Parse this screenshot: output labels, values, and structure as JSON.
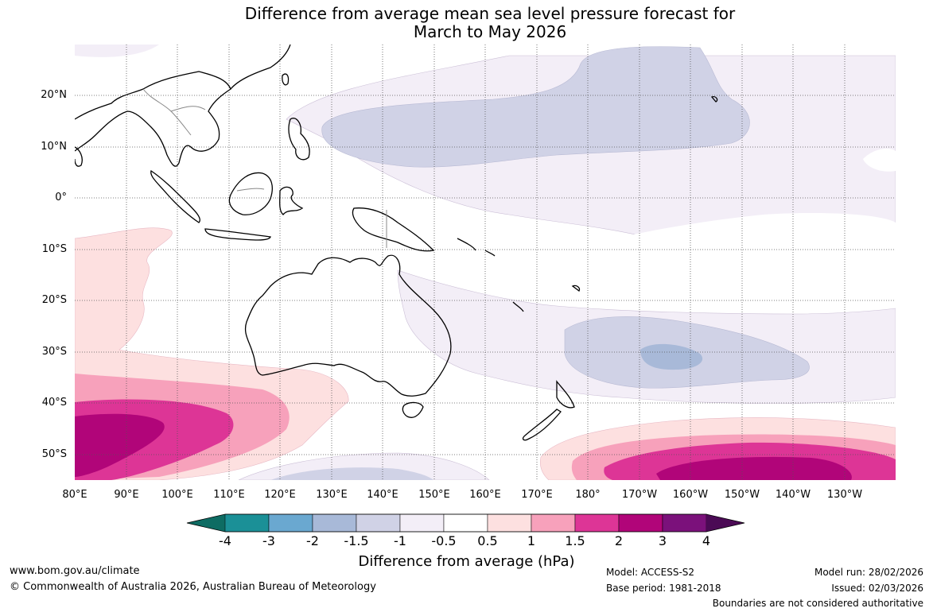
{
  "title": {
    "line1": "Difference from average mean sea level pressure forecast for",
    "line2": "March to May 2026"
  },
  "map": {
    "lat_labels": [
      "20°N",
      "10°N",
      "0°",
      "10°S",
      "20°S",
      "30°S",
      "40°S",
      "50°S"
    ],
    "lon_labels": [
      "80°E",
      "90°E",
      "100°E",
      "110°E",
      "120°E",
      "130°E",
      "140°E",
      "150°E",
      "160°E",
      "170°E",
      "180°",
      "170°W",
      "160°W",
      "150°W",
      "140°W",
      "130°W"
    ],
    "anomaly_regions": [
      {
        "region": "North Pacific low anomaly",
        "level": "-1.5 to -1"
      },
      {
        "region": "Subtropical South Pacific low anomaly",
        "level": "-2 to -1.5"
      },
      {
        "region": "Southern Indian Ocean high anomaly",
        "level": "2 to 3"
      },
      {
        "region": "Southern Ocean south of New Zealand high anomaly",
        "level": "2 to 3"
      }
    ]
  },
  "colorbar": {
    "ticks": [
      "-4",
      "-3",
      "-2",
      "-1.5",
      "-1",
      "-0.5",
      "0.5",
      "1",
      "1.5",
      "2",
      "3",
      "4"
    ],
    "colors": [
      "#0e6c63",
      "#1b9097",
      "#6aa8d0",
      "#a8b9d8",
      "#d0d2e6",
      "#f3eef7",
      "#ffffff",
      "#fde0e0",
      "#f7a1bb",
      "#dd3596",
      "#b10579",
      "#7b117b",
      "#4b0a55"
    ],
    "label": "Difference from average (hPa)"
  },
  "footer": {
    "website": "www.bom.gov.au/climate",
    "copyright": "© Commonwealth of Australia 2026, Australian Bureau of Meteorology",
    "model": "Model: ACCESS-S2",
    "base_period": "Base period: 1981-2018",
    "model_run": "Model run: 28/02/2026",
    "issued": "Issued: 02/03/2026",
    "disclaimer": "Boundaries are not considered authoritative"
  }
}
